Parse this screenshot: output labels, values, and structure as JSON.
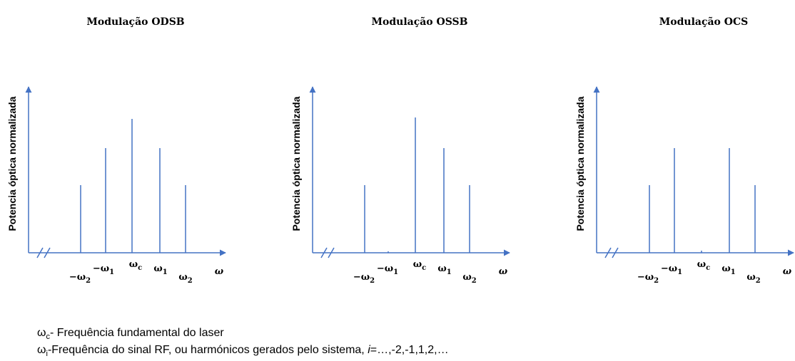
{
  "panels": [
    {
      "title": "Modulação ODSB",
      "ylabel": "Potencia óptica normalizada",
      "xlabel": "ω",
      "ticks": [
        {
          "base": "−ω",
          "sub": "2"
        },
        {
          "base": "−ω",
          "sub": "1"
        },
        {
          "base": "ω",
          "sub": "c"
        },
        {
          "base": "ω",
          "sub": "1"
        },
        {
          "base": "ω",
          "sub": "2"
        }
      ]
    },
    {
      "title": "Modulação OSSB",
      "ylabel": "Potencia óptica normalizada",
      "xlabel": "ω",
      "ticks": [
        {
          "base": "−ω",
          "sub": "2"
        },
        {
          "base": "−ω",
          "sub": "1"
        },
        {
          "base": "ω",
          "sub": "c"
        },
        {
          "base": "ω",
          "sub": "1"
        },
        {
          "base": "ω",
          "sub": "2"
        }
      ]
    },
    {
      "title": "Modulação OCS",
      "ylabel": "Potencia óptica normalizada",
      "xlabel": "ω",
      "ticks": [
        {
          "base": "−ω",
          "sub": "2"
        },
        {
          "base": "−ω",
          "sub": "1"
        },
        {
          "base": "ω",
          "sub": "c"
        },
        {
          "base": "ω",
          "sub": "1"
        },
        {
          "base": "ω",
          "sub": "2"
        }
      ]
    }
  ],
  "legend": [
    {
      "base": "ω",
      "sub": "c",
      "text": "- Frequência fundamental do laser"
    },
    {
      "base": "ω",
      "sub": "i",
      "text": "-Frequência do sinal RF, ou harmónicos gerados pelo sistema, ",
      "italic": "i",
      "rest": "=…,-2,-1,1,2,…"
    }
  ]
}
